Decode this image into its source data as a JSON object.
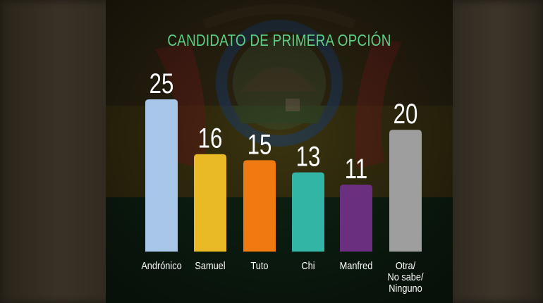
{
  "chart_data": {
    "type": "bar",
    "title": "CANDIDATO DE PRIMERA OPCIÓN",
    "categories": [
      "Andrónico",
      "Samuel",
      "Tuto",
      "Chi",
      "Manfred",
      "Otra/\nNo sabe/\nNinguno"
    ],
    "values": [
      25,
      16,
      15,
      13,
      11,
      20
    ],
    "colors": [
      "#a7c6e8",
      "#e9b926",
      "#f07a12",
      "#33b5a6",
      "#6b2f80",
      "#9e9e9e"
    ],
    "title_color": "#5fcf86",
    "xlabel": "",
    "ylabel": "",
    "ylim": [
      0,
      25
    ],
    "grid": false,
    "legend": "none"
  }
}
